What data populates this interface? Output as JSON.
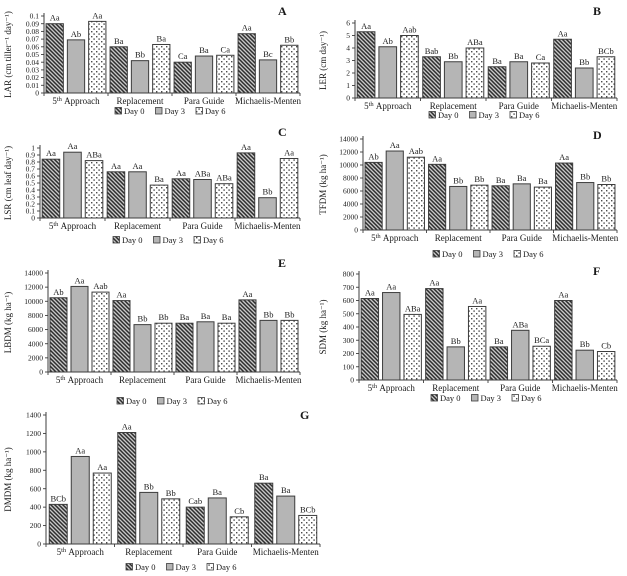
{
  "figure": {
    "background": "#ffffff",
    "axis_color": "#3d3d3d",
    "categories": [
      "5th Approach",
      "Replacement",
      "Para Guide",
      "Michaelis-Menten"
    ],
    "legend_labels": [
      "Day 0",
      "Day 3",
      "Day 6"
    ],
    "series_styles": [
      {
        "name": "Day 0",
        "pattern": "diagonal-hatch",
        "fill": "#c8c8c8",
        "hatch_color": "#2e2e2e"
      },
      {
        "name": "Day 3",
        "pattern": "solid",
        "fill": "#b5b5b5"
      },
      {
        "name": "Day 6",
        "pattern": "dots",
        "fill": "#ffffff",
        "dot_color": "#4a4a4a"
      }
    ]
  },
  "chart_data": [
    {
      "type": "bar",
      "panel": "A",
      "ylabel": "LAR (cm tiller⁻¹ day⁻¹)",
      "ylim": [
        0,
        0.1
      ],
      "ytick_step": 0.01,
      "grid": false,
      "legend_position": "below",
      "categories": [
        "5th Approach",
        "Replacement",
        "Para Guide",
        "Michaelis-Menten"
      ],
      "series": [
        {
          "name": "Day 0",
          "values": [
            0.09,
            0.06,
            0.04,
            0.077
          ],
          "letters": [
            "Aa",
            "Ba",
            "Ca",
            "Aa"
          ]
        },
        {
          "name": "Day 3",
          "values": [
            0.069,
            0.042,
            0.048,
            0.043
          ],
          "letters": [
            "Ab",
            "Bb",
            "Ba",
            "Bc"
          ]
        },
        {
          "name": "Day 6",
          "values": [
            0.093,
            0.063,
            0.049,
            0.062
          ],
          "letters": [
            "Aa",
            "Ba",
            "Ca",
            "Bb"
          ]
        }
      ]
    },
    {
      "type": "bar",
      "panel": "B",
      "ylabel": "LER (cm day⁻¹)",
      "ylim": [
        0,
        6
      ],
      "ytick_step": 1,
      "grid": false,
      "legend_position": "below",
      "categories": [
        "5th Approach",
        "Replacement",
        "Para Guide",
        "Michaelis-Menten"
      ],
      "series": [
        {
          "name": "Day 0",
          "values": [
            5.3,
            3.3,
            2.5,
            4.7
          ],
          "letters": [
            "Aa",
            "Bab",
            "Ba",
            "Aa"
          ]
        },
        {
          "name": "Day 3",
          "values": [
            4.1,
            2.9,
            2.9,
            2.4
          ],
          "letters": [
            "Ab",
            "Bb",
            "Ba",
            "Bb"
          ]
        },
        {
          "name": "Day 6",
          "values": [
            5.0,
            4.0,
            2.8,
            3.3
          ],
          "letters": [
            "Aab",
            "ABa",
            "Ca",
            "BCb"
          ]
        }
      ]
    },
    {
      "type": "bar",
      "panel": "C",
      "ylabel": "LSR (cm leaf day⁻¹)",
      "ylim": [
        0,
        1
      ],
      "ytick_step": 0.1,
      "grid": false,
      "legend_position": "below",
      "categories": [
        "5th Approach",
        "Replacement",
        "Para Guide",
        "Michaelis-Menten"
      ],
      "series": [
        {
          "name": "Day 0",
          "values": [
            0.84,
            0.66,
            0.56,
            0.93
          ],
          "letters": [
            "Aa",
            "Aa",
            "Aa",
            "Aa"
          ]
        },
        {
          "name": "Day 3",
          "values": [
            0.94,
            0.66,
            0.55,
            0.29
          ],
          "letters": [
            "Aa",
            "Aa",
            "ABa",
            "Bb"
          ]
        },
        {
          "name": "Day 6",
          "values": [
            0.82,
            0.47,
            0.49,
            0.85
          ],
          "letters": [
            "ABa",
            "Ba",
            "ABa",
            "Aa"
          ]
        }
      ]
    },
    {
      "type": "bar",
      "panel": "D",
      "ylabel": "TFDM (kg ha⁻¹)",
      "ylim": [
        0,
        14000
      ],
      "ytick_step": 2000,
      "grid": false,
      "legend_position": "below",
      "categories": [
        "5th Approach",
        "Replacement",
        "Para Guide",
        "Michaelis-Menten"
      ],
      "series": [
        {
          "name": "Day 0",
          "values": [
            10400,
            10100,
            6800,
            10300
          ],
          "letters": [
            "Ab",
            "Aa",
            "Ba",
            "Aa"
          ]
        },
        {
          "name": "Day 3",
          "values": [
            12150,
            6700,
            7100,
            7300
          ],
          "letters": [
            "Aa",
            "Bb",
            "Ba",
            "Bb"
          ]
        },
        {
          "name": "Day 6",
          "values": [
            11200,
            6900,
            6600,
            7000
          ],
          "letters": [
            "Aab",
            "Bb",
            "Ba",
            "Bb"
          ]
        }
      ]
    },
    {
      "type": "bar",
      "panel": "E",
      "ylabel": "LBDM (kg ha⁻¹)",
      "ylim": [
        0,
        14000
      ],
      "ytick_step": 2000,
      "grid": false,
      "legend_position": "below",
      "categories": [
        "5th Approach",
        "Replacement",
        "Para Guide",
        "Michaelis-Menten"
      ],
      "series": [
        {
          "name": "Day 0",
          "values": [
            10500,
            10100,
            6900,
            10200
          ],
          "letters": [
            "Ab",
            "Aa",
            "Ba",
            "Aa"
          ]
        },
        {
          "name": "Day 3",
          "values": [
            12100,
            6700,
            7100,
            7300
          ],
          "letters": [
            "Aa",
            "Bb",
            "Ba",
            "Bb"
          ]
        },
        {
          "name": "Day 6",
          "values": [
            11300,
            6900,
            6900,
            7300
          ],
          "letters": [
            "Aab",
            "Bb",
            "Ba",
            "Bb"
          ]
        }
      ]
    },
    {
      "type": "bar",
      "panel": "F",
      "ylabel": "SDM (kg ha⁻¹)",
      "ylim": [
        0,
        800
      ],
      "ytick_step": 100,
      "grid": false,
      "legend_position": "below",
      "categories": [
        "5th Approach",
        "Replacement",
        "Para Guide",
        "Michaelis-Menten"
      ],
      "series": [
        {
          "name": "Day 0",
          "values": [
            615,
            690,
            250,
            600
          ],
          "letters": [
            "Aa",
            "Aa",
            "Ba",
            "Aa"
          ]
        },
        {
          "name": "Day 3",
          "values": [
            660,
            250,
            375,
            225
          ],
          "letters": [
            "Aa",
            "Bb",
            "ABa",
            "Bb"
          ]
        },
        {
          "name": "Day 6",
          "values": [
            495,
            555,
            255,
            215
          ],
          "letters": [
            "ABa",
            "Aa",
            "BCa",
            "Cb"
          ]
        }
      ]
    },
    {
      "type": "bar",
      "panel": "G",
      "ylabel": "DMDM (kg ha⁻¹)",
      "ylim": [
        0,
        1400
      ],
      "ytick_step": 200,
      "grid": false,
      "legend_position": "below",
      "categories": [
        "5th Approach",
        "Replacement",
        "Para Guide",
        "Michaelis-Menten"
      ],
      "series": [
        {
          "name": "Day 0",
          "values": [
            430,
            1210,
            400,
            660
          ],
          "letters": [
            "BCb",
            "Aa",
            "Cab",
            "Ba"
          ]
        },
        {
          "name": "Day 3",
          "values": [
            950,
            560,
            500,
            520
          ],
          "letters": [
            "Aa",
            "Bb",
            "Ba",
            "Ba"
          ]
        },
        {
          "name": "Day 6",
          "values": [
            770,
            490,
            295,
            310
          ],
          "letters": [
            "Aa",
            "Bb",
            "Cb",
            "BCb"
          ]
        }
      ]
    }
  ]
}
